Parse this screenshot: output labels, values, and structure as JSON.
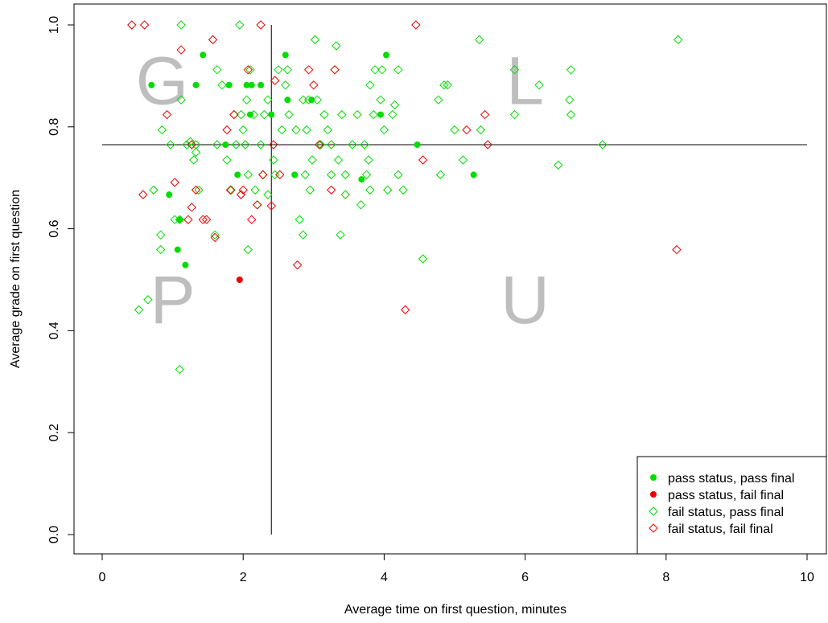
{
  "chart_data": {
    "type": "scatter",
    "title": "",
    "xlabel": "Average time on first question, minutes",
    "ylabel": "Average grade on first question",
    "xlim": [
      -0.4,
      10.4
    ],
    "ylim": [
      -0.04,
      1.04
    ],
    "x_ticks": [
      "0",
      "2",
      "4",
      "6",
      "8",
      "10"
    ],
    "y_ticks": [
      "0.0",
      "0.2",
      "0.4",
      "0.6",
      "0.8",
      "1.0"
    ],
    "reference_lines": {
      "vertical_x": 2.4,
      "horizontal_y": 0.765
    },
    "quadrant_labels": [
      {
        "text": "G",
        "x": 0.85,
        "y": 0.88
      },
      {
        "text": "L",
        "x": 6.0,
        "y": 0.88
      },
      {
        "text": "P",
        "x": 1.0,
        "y": 0.45
      },
      {
        "text": "U",
        "x": 6.0,
        "y": 0.45
      }
    ],
    "legend": {
      "position": "bottom-right"
    },
    "grid": false,
    "series": [
      {
        "name": "pass status, pass final",
        "color": "#00dd00",
        "marker": "filled-circle",
        "points": [
          [
            0.7,
            0.882
          ],
          [
            0.95,
            0.667
          ],
          [
            1.1,
            0.618
          ],
          [
            1.07,
            0.559
          ],
          [
            1.18,
            0.529
          ],
          [
            1.43,
            0.941
          ],
          [
            1.33,
            0.882
          ],
          [
            1.75,
            0.765
          ],
          [
            1.8,
            0.882
          ],
          [
            1.92,
            0.706
          ],
          [
            2.05,
            0.882
          ],
          [
            2.12,
            0.882
          ],
          [
            2.25,
            0.882
          ],
          [
            2.1,
            0.824
          ],
          [
            2.4,
            0.824
          ],
          [
            2.6,
            0.941
          ],
          [
            2.63,
            0.853
          ],
          [
            2.73,
            0.706
          ],
          [
            2.97,
            0.853
          ],
          [
            3.95,
            0.824
          ],
          [
            3.68,
            0.697
          ],
          [
            4.03,
            0.941
          ],
          [
            4.47,
            0.765
          ],
          [
            5.27,
            0.706
          ]
        ]
      },
      {
        "name": "pass status, fail final",
        "color": "#ee0000",
        "marker": "filled-circle",
        "points": [
          [
            1.95,
            0.5
          ]
        ]
      },
      {
        "name": "fail status, pass final",
        "color": "#00dd00",
        "marker": "open-diamond",
        "points": [
          [
            0.52,
            0.441
          ],
          [
            0.65,
            0.461
          ],
          [
            0.73,
            0.676
          ],
          [
            0.85,
            0.794
          ],
          [
            0.83,
            0.588
          ],
          [
            0.83,
            0.559
          ],
          [
            0.97,
            0.765
          ],
          [
            1.03,
            0.618
          ],
          [
            1.1,
            0.618
          ],
          [
            1.12,
            0.853
          ],
          [
            1.12,
            1.0
          ],
          [
            1.1,
            0.324
          ],
          [
            1.2,
            0.765
          ],
          [
            1.25,
            0.771
          ],
          [
            1.3,
            0.735
          ],
          [
            1.33,
            0.765
          ],
          [
            1.33,
            0.75
          ],
          [
            1.37,
            0.676
          ],
          [
            1.6,
            0.588
          ],
          [
            1.63,
            0.765
          ],
          [
            1.63,
            0.912
          ],
          [
            1.7,
            0.882
          ],
          [
            1.77,
            0.735
          ],
          [
            1.83,
            0.676
          ],
          [
            1.87,
            0.824
          ],
          [
            1.9,
            0.765
          ],
          [
            1.95,
            1.0
          ],
          [
            1.97,
            0.824
          ],
          [
            2.0,
            0.794
          ],
          [
            2.03,
            0.765
          ],
          [
            2.05,
            0.853
          ],
          [
            2.07,
            0.706
          ],
          [
            2.07,
            0.559
          ],
          [
            2.1,
            0.912
          ],
          [
            2.15,
            0.824
          ],
          [
            2.17,
            0.676
          ],
          [
            2.2,
            0.647
          ],
          [
            2.25,
            0.765
          ],
          [
            2.28,
            0.706
          ],
          [
            2.3,
            0.824
          ],
          [
            2.35,
            0.853
          ],
          [
            2.35,
            0.667
          ],
          [
            2.43,
            0.735
          ],
          [
            2.45,
            0.706
          ],
          [
            2.5,
            0.912
          ],
          [
            2.55,
            0.794
          ],
          [
            2.6,
            0.882
          ],
          [
            2.63,
            0.912
          ],
          [
            2.65,
            0.824
          ],
          [
            2.75,
            0.794
          ],
          [
            2.8,
            0.618
          ],
          [
            2.85,
            0.588
          ],
          [
            2.85,
            0.853
          ],
          [
            2.88,
            0.706
          ],
          [
            2.9,
            0.794
          ],
          [
            2.93,
            0.853
          ],
          [
            2.95,
            0.676
          ],
          [
            2.98,
            0.735
          ],
          [
            3.02,
            0.971
          ],
          [
            3.05,
            0.853
          ],
          [
            3.1,
            0.765
          ],
          [
            3.15,
            0.824
          ],
          [
            3.2,
            0.794
          ],
          [
            3.25,
            0.765
          ],
          [
            3.25,
            0.706
          ],
          [
            3.3,
            0.912
          ],
          [
            3.32,
            0.959
          ],
          [
            3.35,
            0.735
          ],
          [
            3.38,
            0.588
          ],
          [
            3.4,
            0.824
          ],
          [
            3.45,
            0.706
          ],
          [
            3.45,
            0.667
          ],
          [
            3.55,
            0.765
          ],
          [
            3.62,
            0.824
          ],
          [
            3.67,
            0.647
          ],
          [
            3.72,
            0.765
          ],
          [
            3.75,
            0.706
          ],
          [
            3.78,
            0.735
          ],
          [
            3.8,
            0.882
          ],
          [
            3.8,
            0.676
          ],
          [
            3.85,
            0.824
          ],
          [
            3.87,
            0.912
          ],
          [
            3.95,
            0.853
          ],
          [
            3.97,
            0.912
          ],
          [
            4.0,
            0.794
          ],
          [
            4.05,
            0.676
          ],
          [
            4.12,
            0.824
          ],
          [
            4.15,
            0.843
          ],
          [
            4.2,
            0.706
          ],
          [
            4.2,
            0.912
          ],
          [
            4.27,
            0.676
          ],
          [
            4.55,
            0.541
          ],
          [
            4.77,
            0.853
          ],
          [
            4.8,
            0.706
          ],
          [
            4.85,
            0.882
          ],
          [
            4.9,
            0.882
          ],
          [
            5.0,
            0.794
          ],
          [
            5.12,
            0.735
          ],
          [
            5.35,
            0.971
          ],
          [
            5.37,
            0.794
          ],
          [
            5.85,
            0.912
          ],
          [
            5.85,
            0.824
          ],
          [
            6.2,
            0.882
          ],
          [
            6.47,
            0.725
          ],
          [
            6.63,
            0.853
          ],
          [
            6.65,
            0.912
          ],
          [
            6.65,
            0.824
          ],
          [
            7.1,
            0.765
          ],
          [
            8.17,
            0.971
          ]
        ]
      },
      {
        "name": "fail status, fail final",
        "color": "#ee0000",
        "marker": "open-diamond",
        "points": [
          [
            0.42,
            1.0
          ],
          [
            0.6,
            1.0
          ],
          [
            0.58,
            0.667
          ],
          [
            0.92,
            0.824
          ],
          [
            1.03,
            0.691
          ],
          [
            1.12,
            0.951
          ],
          [
            1.22,
            0.618
          ],
          [
            1.27,
            0.765
          ],
          [
            1.27,
            0.642
          ],
          [
            1.33,
            0.676
          ],
          [
            1.43,
            0.618
          ],
          [
            1.48,
            0.618
          ],
          [
            1.57,
            0.971
          ],
          [
            1.6,
            0.583
          ],
          [
            1.77,
            0.794
          ],
          [
            1.82,
            0.676
          ],
          [
            1.87,
            0.824
          ],
          [
            1.97,
            0.667
          ],
          [
            2.0,
            0.676
          ],
          [
            2.07,
            0.912
          ],
          [
            2.12,
            0.618
          ],
          [
            2.2,
            0.647
          ],
          [
            2.25,
            1.0
          ],
          [
            2.28,
            0.706
          ],
          [
            2.4,
            0.645
          ],
          [
            2.43,
            0.765
          ],
          [
            2.45,
            0.891
          ],
          [
            2.52,
            0.706
          ],
          [
            2.77,
            0.529
          ],
          [
            2.93,
            0.912
          ],
          [
            3.0,
            0.882
          ],
          [
            3.08,
            0.765
          ],
          [
            3.25,
            0.676
          ],
          [
            3.3,
            0.912
          ],
          [
            4.3,
            0.441
          ],
          [
            4.45,
            1.0
          ],
          [
            4.55,
            0.735
          ],
          [
            5.17,
            0.794
          ],
          [
            5.43,
            0.824
          ],
          [
            5.47,
            0.765
          ],
          [
            8.15,
            0.559
          ]
        ]
      }
    ]
  }
}
